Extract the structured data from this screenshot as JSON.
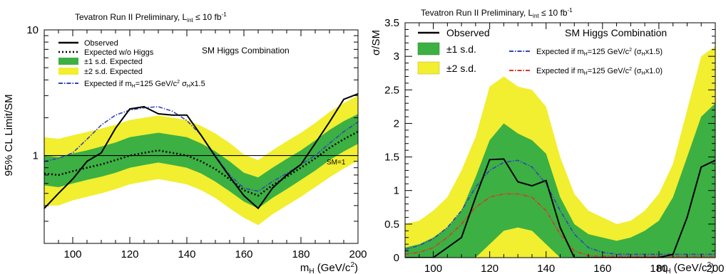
{
  "chart_data": [
    {
      "type": "line",
      "title": "Tevatron Run II Preliminary, L",
      "title_sub": "int",
      "title_suffix": " ≤ 10 fb",
      "title_sup": "-1",
      "xlabel": "m",
      "xlabel_sub": "H",
      "xlabel_suffix": " (GeV/c",
      "xlabel_sup": "2",
      "xlabel_close": ")",
      "ylabel": "95% CL Limit/SM",
      "xlim": [
        90,
        200
      ],
      "ylim": [
        0.2,
        10
      ],
      "yscale": "log",
      "x_ticks": [
        100,
        120,
        140,
        160,
        180,
        200
      ],
      "y_ticks": [
        {
          "value": 1,
          "label": "1"
        },
        {
          "value": 10,
          "label": "10"
        }
      ],
      "annotation": "SM Higgs Combination",
      "reference_line": {
        "y": 1,
        "label": "SM=1"
      },
      "legend": {
        "placement": "top-left",
        "observed": "Observed",
        "expected": "Expected w/o Higgs",
        "band1": "±1 s.d. Expected",
        "band2": "±2 s.d. Expected",
        "inj_prefix": "Expected if m",
        "inj_sub": "H",
        "inj_mid": "=125 GeV/c",
        "inj_sup": "2",
        "inj_sigma": " σ",
        "inj_sigma_sub": "H",
        "inj_suffix": "x1.5"
      },
      "x": [
        90,
        95,
        100,
        105,
        110,
        115,
        120,
        125,
        130,
        135,
        140,
        145,
        150,
        155,
        160,
        165,
        170,
        175,
        180,
        185,
        190,
        195,
        200
      ],
      "observed": [
        0.38,
        0.5,
        0.65,
        0.9,
        1.05,
        1.65,
        2.35,
        2.45,
        2.15,
        2.1,
        2.1,
        1.45,
        0.98,
        0.68,
        0.48,
        0.38,
        0.55,
        0.7,
        0.85,
        1.25,
        1.85,
        2.8,
        3.1
      ],
      "expected": [
        0.72,
        0.7,
        0.75,
        0.8,
        0.85,
        0.92,
        1.0,
        1.05,
        1.1,
        1.05,
        1.0,
        0.9,
        0.78,
        0.65,
        0.53,
        0.48,
        0.58,
        0.68,
        0.8,
        0.95,
        1.15,
        1.35,
        1.55
      ],
      "injection_125_x1_5": [
        0.9,
        0.95,
        1.05,
        1.35,
        1.75,
        2.1,
        2.3,
        2.4,
        2.45,
        2.25,
        1.9,
        1.45,
        1.0,
        0.7,
        0.55,
        0.52,
        0.62,
        0.72,
        0.85,
        1.0,
        1.25,
        1.55,
        1.85
      ],
      "band1_low": [
        0.58,
        0.56,
        0.6,
        0.64,
        0.68,
        0.73,
        0.8,
        0.84,
        0.88,
        0.84,
        0.8,
        0.72,
        0.62,
        0.52,
        0.43,
        0.38,
        0.46,
        0.54,
        0.64,
        0.76,
        0.92,
        1.08,
        1.24
      ],
      "band1_high": [
        1.0,
        0.97,
        1.04,
        1.1,
        1.18,
        1.27,
        1.4,
        1.46,
        1.52,
        1.46,
        1.4,
        1.25,
        1.08,
        0.9,
        0.73,
        0.67,
        0.8,
        0.94,
        1.1,
        1.32,
        1.6,
        1.88,
        2.14
      ],
      "band2_low": [
        0.4,
        0.4,
        0.44,
        0.47,
        0.5,
        0.54,
        0.59,
        0.62,
        0.65,
        0.62,
        0.59,
        0.53,
        0.46,
        0.38,
        0.32,
        0.28,
        0.34,
        0.4,
        0.47,
        0.56,
        0.67,
        0.79,
        0.91
      ],
      "band2_high": [
        1.4,
        1.36,
        1.45,
        1.54,
        1.64,
        1.76,
        1.92,
        2.0,
        2.08,
        2.0,
        1.92,
        1.72,
        1.5,
        1.26,
        1.02,
        0.92,
        1.1,
        1.3,
        1.52,
        1.82,
        2.22,
        2.62,
        3.0
      ]
    },
    {
      "type": "line",
      "title": "Tevatron Run II Preliminary, L",
      "title_sub": "int",
      "title_suffix": " ≤ 10 fb",
      "title_sup": "-1",
      "xlabel": "m",
      "xlabel_sub": "H",
      "xlabel_suffix": " (GeV/c",
      "xlabel_sup": "2",
      "xlabel_close": ")",
      "ylabel": "σ/SM",
      "xlim": [
        90,
        200
      ],
      "ylim": [
        0,
        3.5
      ],
      "x_ticks": [
        100,
        120,
        140,
        160,
        180,
        200
      ],
      "y_ticks": [
        {
          "value": 0,
          "label": "0"
        },
        {
          "value": 0.5,
          "label": "0.5"
        },
        {
          "value": 1,
          "label": "1"
        },
        {
          "value": 1.5,
          "label": "1.5"
        },
        {
          "value": 2,
          "label": "2"
        },
        {
          "value": 2.5,
          "label": "2.5"
        },
        {
          "value": 3,
          "label": "3"
        },
        {
          "value": 3.5,
          "label": "3.5"
        }
      ],
      "annotation": "SM Higgs Combination",
      "legend": {
        "placement": "top",
        "observed": "Observed",
        "band1": "±1 s.d.",
        "band2": "±2 s.d.",
        "inj15_prefix": "Expected if m",
        "inj15_sub": "H",
        "inj15_mid": "=125 GeV/c",
        "inj15_sup": "2",
        "inj15_suffix": " (σ",
        "inj15_sigma_sub": "H",
        "inj15_end": "x1.5)",
        "inj10_prefix": "Expected if m",
        "inj10_sub": "H",
        "inj10_mid": "=125 GeV/c",
        "inj10_sup": "2",
        "inj10_suffix": " (σ",
        "inj10_sigma_sub": "H",
        "inj10_end": "x1.0)"
      },
      "x": [
        90,
        95,
        100,
        105,
        110,
        115,
        120,
        125,
        130,
        135,
        140,
        145,
        150,
        155,
        160,
        165,
        170,
        175,
        180,
        185,
        190,
        195,
        200
      ],
      "observed": [
        0.0,
        0.0,
        0.0,
        0.15,
        0.3,
        0.9,
        1.46,
        1.47,
        1.13,
        1.07,
        1.15,
        0.45,
        0.0,
        0.0,
        0.0,
        0.0,
        0.0,
        0.0,
        0.0,
        0.05,
        0.6,
        1.35,
        1.45
      ],
      "injection_125_x1_5": [
        0.12,
        0.18,
        0.28,
        0.45,
        0.7,
        1.05,
        1.3,
        1.42,
        1.45,
        1.35,
        1.1,
        0.7,
        0.35,
        0.15,
        0.08,
        0.05,
        0.05,
        0.05,
        0.05,
        0.05,
        0.05,
        0.05,
        0.05
      ],
      "injection_125_x1_0": [
        0.05,
        0.08,
        0.15,
        0.3,
        0.5,
        0.75,
        0.9,
        0.95,
        0.95,
        0.9,
        0.7,
        0.35,
        0.1,
        0.03,
        0.02,
        0.02,
        0.02,
        0.02,
        0.02,
        0.02,
        0.02,
        0.02,
        0.02
      ],
      "band1_low": [
        0.0,
        0.0,
        0.0,
        0.0,
        0.0,
        0.0,
        0.2,
        0.4,
        0.45,
        0.4,
        0.2,
        0.0,
        0.0,
        0.0,
        0.0,
        0.0,
        0.0,
        0.0,
        0.0,
        0.0,
        0.0,
        0.0,
        0.0
      ],
      "band1_high": [
        0.15,
        0.2,
        0.3,
        0.45,
        0.7,
        1.2,
        1.75,
        2.0,
        1.85,
        1.75,
        1.55,
        0.9,
        0.5,
        0.35,
        0.3,
        0.25,
        0.3,
        0.4,
        0.55,
        0.9,
        1.5,
        2.1,
        2.3
      ],
      "band2_low": [
        0.0,
        0.0,
        0.0,
        0.0,
        0.0,
        0.0,
        0.0,
        0.0,
        0.0,
        0.0,
        0.0,
        0.0,
        0.0,
        0.0,
        0.0,
        0.0,
        0.0,
        0.0,
        0.0,
        0.0,
        0.0,
        0.0,
        0.0
      ],
      "band2_high": [
        0.5,
        0.55,
        0.7,
        0.9,
        1.3,
        1.8,
        2.55,
        2.7,
        2.55,
        2.5,
        2.25,
        1.5,
        0.95,
        0.7,
        0.6,
        0.5,
        0.55,
        0.7,
        0.95,
        1.4,
        2.2,
        3.0,
        3.15
      ]
    }
  ],
  "colors": {
    "band1": "#3cb043",
    "band2": "#f2ee30",
    "observed": "#000000",
    "expected": "#000000",
    "injection_15": "#3344bb",
    "injection_10": "#e0342c"
  }
}
